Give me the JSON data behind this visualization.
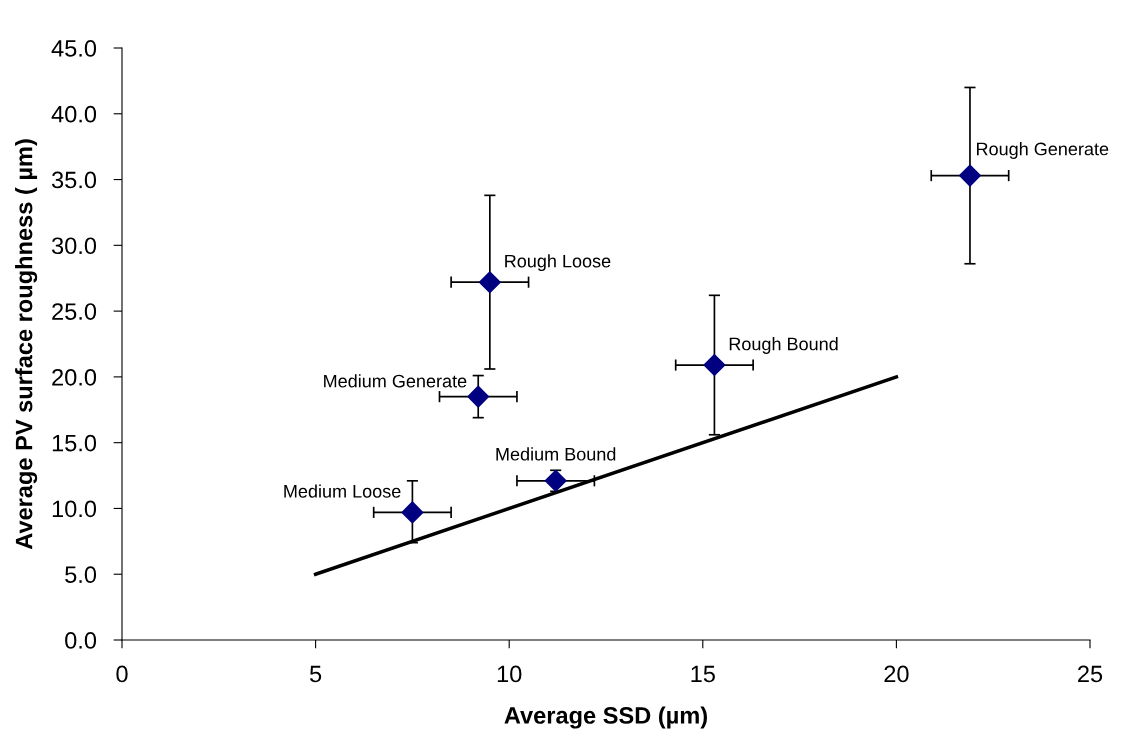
{
  "chart_data": {
    "type": "scatter",
    "xlabel": "Average SSD (µm)",
    "ylabel": "Average PV surface roughness ( µm)",
    "xlim": [
      0,
      25
    ],
    "xticks": [
      0,
      5,
      10,
      15,
      20,
      25
    ],
    "ylim": [
      0,
      45
    ],
    "yticks": [
      {
        "value": 0,
        "label": "0.0"
      },
      {
        "value": 5,
        "label": "5.0"
      },
      {
        "value": 10,
        "label": "10.0"
      },
      {
        "value": 15,
        "label": "15.0"
      },
      {
        "value": 20,
        "label": "20.0"
      },
      {
        "value": 25,
        "label": "25.0"
      },
      {
        "value": 30,
        "label": "30.0"
      },
      {
        "value": 35,
        "label": "35.0"
      },
      {
        "value": 40,
        "label": "40.0"
      },
      {
        "value": 45,
        "label": "45.0"
      }
    ],
    "grid": false,
    "legend": false,
    "series": [
      {
        "color": "#000080",
        "marker": "diamond",
        "x": [
          7.5,
          9.2,
          9.5,
          11.2,
          15.3,
          21.9
        ],
        "values": [
          9.7,
          18.5,
          27.2,
          12.1,
          20.9,
          35.3
        ],
        "errors": [
          [
            7.4,
            12.1
          ],
          [
            16.9,
            20.1
          ],
          [
            20.6,
            33.8
          ],
          [
            11.3,
            12.9
          ],
          [
            15.6,
            26.2
          ],
          [
            28.6,
            42.0
          ]
        ],
        "xerrors": [
          [
            6.5,
            8.5
          ],
          [
            8.2,
            10.2
          ],
          [
            8.5,
            10.5
          ],
          [
            10.2,
            12.2
          ],
          [
            14.3,
            16.3
          ],
          [
            20.9,
            22.9
          ]
        ]
      },
      {
        "type": "line",
        "color": "#000000",
        "marker": "none",
        "line_style": "solid",
        "x": [
          5,
          20
        ],
        "values": [
          5,
          20
        ]
      }
    ],
    "annotations": [
      {
        "text": "Medium Loose",
        "x": 7.5,
        "y": 9.7
      },
      {
        "text": "Medium Generate",
        "x": 9.2,
        "y": 18.5
      },
      {
        "text": "Rough Loose",
        "x": 9.5,
        "y": 27.2
      },
      {
        "text": "Medium Bound",
        "x": 11.2,
        "y": 12.1
      },
      {
        "text": "Rough Bound",
        "x": 15.3,
        "y": 20.9
      },
      {
        "text": "Rough Generate",
        "x": 21.9,
        "y": 35.3
      }
    ]
  }
}
